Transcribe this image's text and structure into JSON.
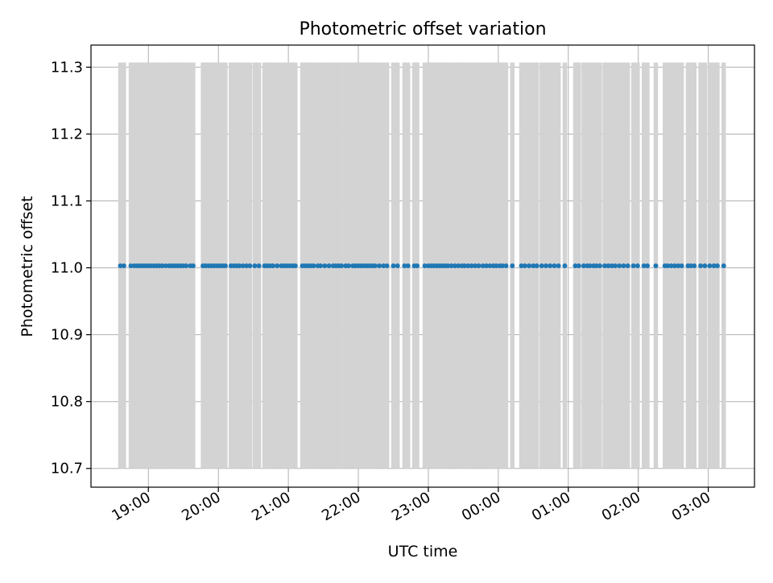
{
  "chart_data": {
    "type": "scatter",
    "title": "Photometric offset variation",
    "xlabel": "UTC time",
    "ylabel": "Photometric offset",
    "x_type": "time",
    "x_tick_labels": [
      "19:00",
      "20:00",
      "21:00",
      "22:00",
      "23:00",
      "00:00",
      "01:00",
      "02:00",
      "03:00"
    ],
    "x_ticks_hours": [
      19,
      20,
      21,
      22,
      23,
      24,
      25,
      26,
      27
    ],
    "xlim_hours": [
      18.18,
      27.66
    ],
    "y_ticks": [
      10.7,
      10.8,
      10.9,
      11.0,
      11.1,
      11.2,
      11.3
    ],
    "y_tick_labels": [
      "10.7",
      "10.8",
      "10.9",
      "11.0",
      "11.1",
      "11.2",
      "11.3"
    ],
    "ylim": [
      10.672,
      11.333
    ],
    "grid": true,
    "colors": {
      "points": "#1f77b4",
      "errorbars": "#d3d3d3",
      "grid": "#b0b0b0"
    },
    "errorbar_range": [
      10.7,
      11.307
    ],
    "series": [
      {
        "marker": "points with vertical error bars",
        "y": 11.003,
        "x_hours": [
          18.6,
          18.65,
          18.75,
          18.8,
          18.84,
          18.88,
          18.92,
          18.96,
          19.0,
          19.04,
          19.08,
          19.12,
          19.16,
          19.2,
          19.25,
          19.3,
          19.34,
          19.38,
          19.42,
          19.46,
          19.5,
          19.54,
          19.6,
          19.64,
          19.78,
          19.82,
          19.86,
          19.9,
          19.94,
          19.98,
          20.02,
          20.06,
          20.1,
          20.18,
          20.22,
          20.26,
          20.3,
          20.35,
          20.4,
          20.45,
          20.52,
          20.58,
          20.66,
          20.7,
          20.74,
          20.78,
          20.84,
          20.9,
          20.94,
          20.98,
          21.02,
          21.06,
          21.1,
          21.2,
          21.24,
          21.28,
          21.32,
          21.36,
          21.42,
          21.46,
          21.52,
          21.58,
          21.64,
          21.68,
          21.72,
          21.76,
          21.82,
          21.86,
          21.92,
          21.96,
          22.0,
          22.04,
          22.08,
          22.12,
          22.16,
          22.2,
          22.24,
          22.3,
          22.36,
          22.41,
          22.5,
          22.56,
          22.66,
          22.71,
          22.8,
          22.84,
          22.95,
          23.0,
          23.04,
          23.08,
          23.12,
          23.16,
          23.2,
          23.24,
          23.28,
          23.33,
          23.38,
          23.43,
          23.48,
          23.52,
          23.57,
          23.62,
          23.67,
          23.72,
          23.78,
          23.83,
          23.88,
          23.93,
          23.97,
          24.02,
          24.06,
          24.11,
          24.2,
          24.33,
          24.38,
          24.44,
          24.5,
          24.55,
          24.62,
          24.68,
          24.74,
          24.8,
          24.86,
          24.95,
          25.1,
          25.15,
          25.22,
          25.27,
          25.31,
          25.36,
          25.4,
          25.45,
          25.52,
          25.57,
          25.62,
          25.67,
          25.73,
          25.79,
          25.85,
          25.93,
          25.99,
          26.08,
          26.13,
          26.25,
          26.38,
          26.42,
          26.47,
          26.52,
          26.57,
          26.62,
          26.71,
          26.75,
          26.8,
          26.89,
          26.95,
          27.02,
          27.08,
          27.13,
          27.22
        ]
      }
    ]
  }
}
